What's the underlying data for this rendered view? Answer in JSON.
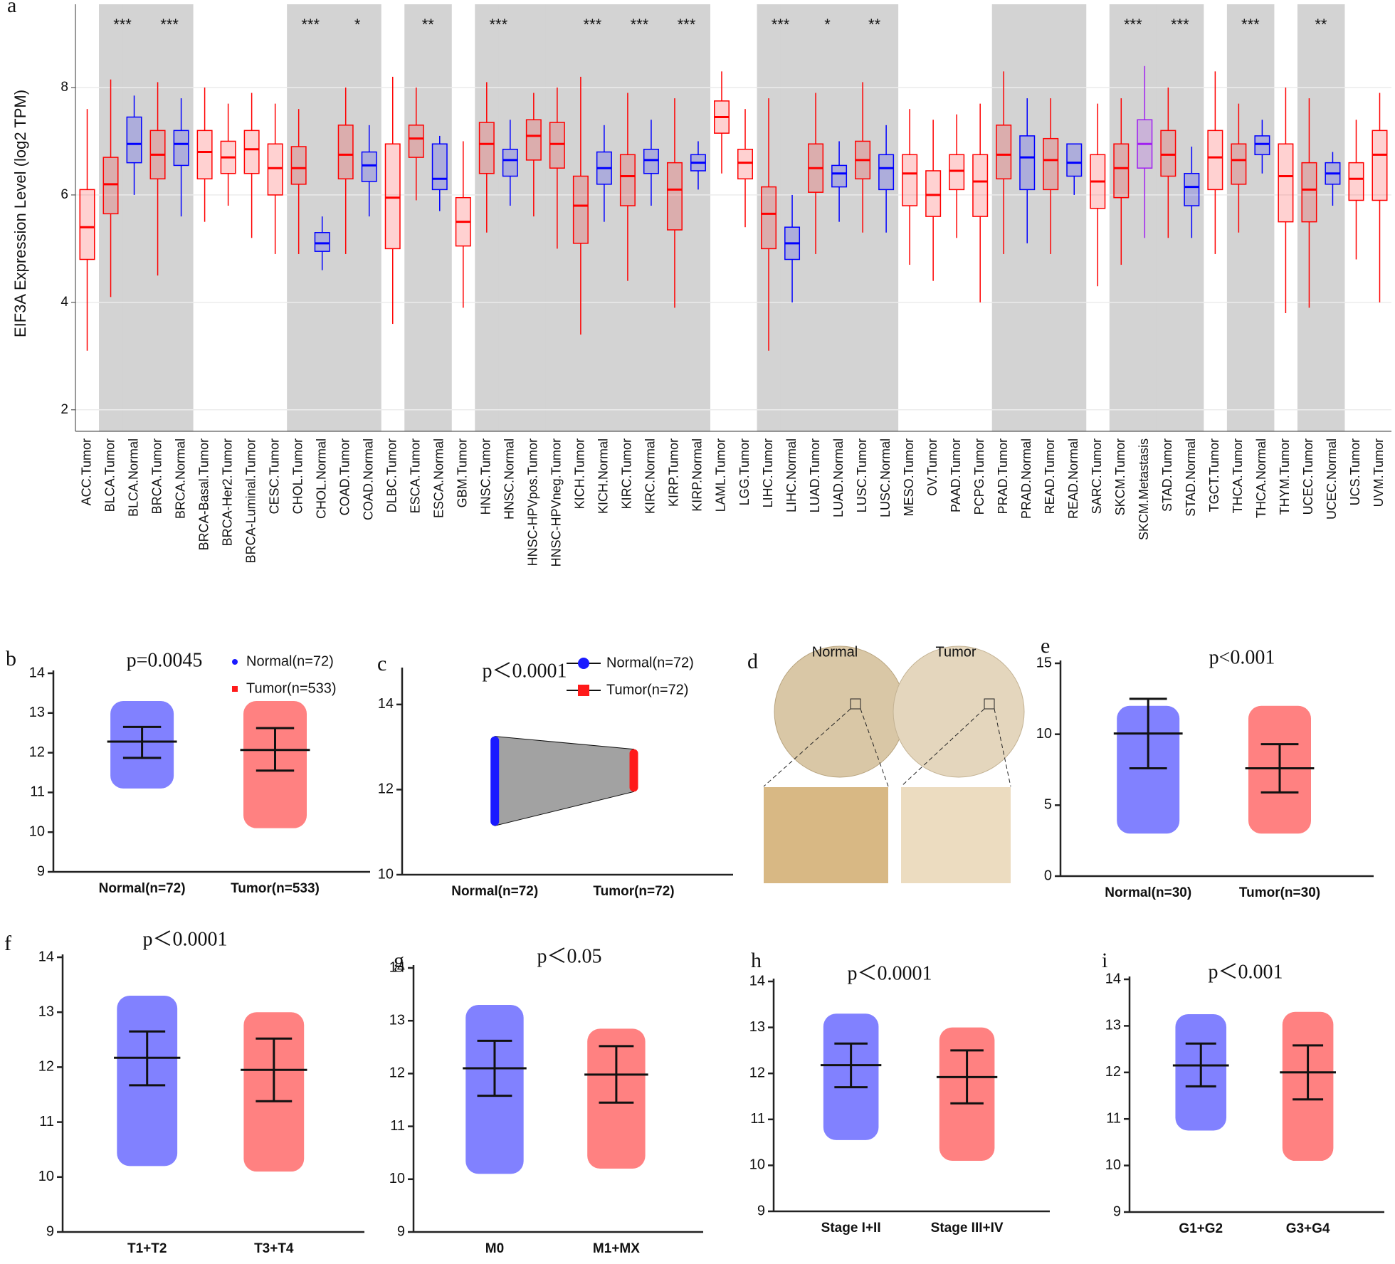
{
  "chart_data": [
    {
      "type": "box",
      "panel_label": "a",
      "ylabel": "EIF3A Expression Level (log2 TPM)",
      "categories": [
        "ACC.Tumor",
        "BLCA.Tumor",
        "BLCA.Normal",
        "BRCA.Tumor",
        "BRCA.Normal",
        "BRCA-Basal.Tumor",
        "BRCA-Her2.Tumor",
        "BRCA-Luminal.Tumor",
        "CESC.Tumor",
        "CHOL.Tumor",
        "CHOL.Normal",
        "COAD.Tumor",
        "COAD.Normal",
        "DLBC.Tumor",
        "ESCA.Tumor",
        "ESCA.Normal",
        "GBM.Tumor",
        "HNSC.Tumor",
        "HNSC.Normal",
        "HNSC-HPVpos.Tumor",
        "HNSC-HPVneg.Tumor",
        "KICH.Tumor",
        "KICH.Normal",
        "KIRC.Tumor",
        "KIRC.Normal",
        "KIRP.Tumor",
        "KIRP.Normal",
        "LAML.Tumor",
        "LGG.Tumor",
        "LIHC.Tumor",
        "LIHC.Normal",
        "LUAD.Tumor",
        "LUAD.Normal",
        "LUSC.Tumor",
        "LUSC.Normal",
        "MESO.Tumor",
        "OV.Tumor",
        "PAAD.Tumor",
        "PCPG.Tumor",
        "PRAD.Tumor",
        "PRAD.Normal",
        "READ.Tumor",
        "READ.Normal",
        "SARC.Tumor",
        "SKCM.Tumor",
        "SKCM.Metastasis",
        "STAD.Tumor",
        "STAD.Normal",
        "TGCT.Tumor",
        "THCA.Tumor",
        "THCA.Normal",
        "THYM.Tumor",
        "UCEC.Tumor",
        "UCEC.Normal",
        "UCS.Tumor",
        "UVM.Tumor"
      ],
      "median": [
        5.4,
        6.2,
        6.95,
        6.75,
        6.95,
        6.8,
        6.7,
        6.85,
        6.5,
        6.5,
        5.1,
        6.75,
        6.55,
        5.95,
        7.05,
        6.3,
        5.5,
        6.95,
        6.65,
        7.1,
        6.95,
        5.8,
        6.5,
        6.35,
        6.65,
        6.1,
        6.6,
        7.45,
        6.6,
        5.65,
        5.1,
        6.5,
        6.4,
        6.65,
        6.5,
        6.4,
        6.0,
        6.45,
        6.25,
        6.75,
        6.7,
        6.65,
        6.6,
        6.25,
        6.5,
        6.95,
        6.75,
        6.15,
        6.7,
        6.65,
        6.95,
        6.35,
        6.1,
        6.4,
        6.3,
        6.75
      ],
      "q1": [
        4.8,
        5.65,
        6.6,
        6.3,
        6.55,
        6.3,
        6.4,
        6.4,
        6.0,
        6.2,
        4.95,
        6.3,
        6.25,
        5.0,
        6.7,
        6.1,
        5.05,
        6.4,
        6.35,
        6.65,
        6.5,
        5.1,
        6.2,
        5.8,
        6.4,
        5.35,
        6.45,
        7.15,
        6.3,
        5.0,
        4.8,
        6.05,
        6.15,
        6.3,
        6.1,
        5.8,
        5.6,
        6.1,
        5.6,
        6.3,
        6.1,
        6.1,
        6.35,
        5.75,
        5.95,
        6.5,
        6.35,
        5.8,
        6.1,
        6.2,
        6.75,
        5.5,
        5.5,
        6.2,
        5.9,
        5.9
      ],
      "q3": [
        6.1,
        6.7,
        7.45,
        7.2,
        7.2,
        7.2,
        7.0,
        7.2,
        6.95,
        6.9,
        5.3,
        7.3,
        6.8,
        6.95,
        7.3,
        6.95,
        5.95,
        7.35,
        6.85,
        7.4,
        7.35,
        6.35,
        6.8,
        6.75,
        6.85,
        6.6,
        6.75,
        7.75,
        6.85,
        6.15,
        5.4,
        6.95,
        6.55,
        7.0,
        6.75,
        6.75,
        6.45,
        6.75,
        6.75,
        7.3,
        7.1,
        7.05,
        6.95,
        6.75,
        6.95,
        7.4,
        7.2,
        6.4,
        7.2,
        6.95,
        7.1,
        6.95,
        6.6,
        6.6,
        6.6,
        7.2
      ],
      "whisker_low": [
        3.1,
        4.1,
        6.0,
        4.5,
        5.6,
        5.5,
        5.8,
        5.2,
        4.9,
        4.9,
        4.6,
        4.9,
        5.6,
        3.6,
        5.9,
        5.7,
        3.9,
        5.3,
        5.8,
        5.6,
        5.0,
        3.4,
        5.5,
        4.4,
        5.8,
        3.9,
        6.1,
        6.4,
        5.4,
        3.1,
        4.0,
        4.9,
        5.5,
        5.3,
        5.3,
        4.7,
        4.4,
        5.2,
        4.0,
        4.9,
        5.1,
        4.9,
        6.0,
        4.3,
        4.7,
        5.2,
        5.2,
        5.2,
        4.9,
        5.3,
        6.4,
        3.8,
        3.9,
        5.8,
        4.8,
        4.0
      ],
      "whisker_high": [
        7.6,
        8.15,
        7.85,
        8.1,
        7.8,
        8.0,
        7.7,
        7.9,
        7.7,
        7.6,
        5.6,
        8.0,
        7.3,
        8.2,
        8.0,
        7.1,
        7.0,
        8.1,
        7.4,
        7.9,
        8.0,
        8.2,
        7.3,
        7.9,
        7.4,
        7.8,
        7.0,
        8.3,
        7.6,
        7.8,
        6.0,
        7.9,
        7.0,
        8.1,
        7.3,
        7.6,
        7.4,
        7.5,
        7.7,
        8.3,
        7.8,
        7.8,
        6.95,
        7.7,
        7.8,
        8.4,
        8.0,
        6.9,
        8.3,
        7.7,
        7.4,
        8.0,
        7.8,
        6.8,
        7.4,
        7.9
      ],
      "colors": [
        "#f00",
        "#f00",
        "#00f",
        "#f00",
        "#00f",
        "#f00",
        "#f00",
        "#f00",
        "#f00",
        "#f00",
        "#00f",
        "#f00",
        "#00f",
        "#f00",
        "#f00",
        "#00f",
        "#f00",
        "#f00",
        "#00f",
        "#f00",
        "#f00",
        "#f00",
        "#00f",
        "#f00",
        "#00f",
        "#f00",
        "#00f",
        "#f00",
        "#f00",
        "#f00",
        "#00f",
        "#f00",
        "#00f",
        "#f00",
        "#00f",
        "#f00",
        "#f00",
        "#f00",
        "#f00",
        "#f00",
        "#00f",
        "#f00",
        "#00f",
        "#f00",
        "#f00",
        "#a020f0",
        "#f00",
        "#00f",
        "#f00",
        "#f00",
        "#00f",
        "#f00",
        "#f00",
        "#00f",
        "#f00",
        "#f00"
      ],
      "shaded": [
        false,
        true,
        true,
        true,
        true,
        false,
        false,
        false,
        false,
        true,
        true,
        true,
        true,
        false,
        true,
        true,
        false,
        true,
        true,
        true,
        true,
        true,
        true,
        true,
        true,
        true,
        true,
        false,
        false,
        true,
        true,
        true,
        true,
        true,
        true,
        false,
        false,
        false,
        false,
        true,
        true,
        true,
        true,
        false,
        true,
        true,
        true,
        true,
        false,
        true,
        true,
        false,
        true,
        true,
        false,
        false
      ],
      "significance": [
        null,
        "***",
        null,
        "***",
        null,
        null,
        null,
        null,
        null,
        "***",
        null,
        "*",
        null,
        null,
        "**",
        null,
        null,
        "***",
        null,
        null,
        null,
        "***",
        null,
        "***",
        null,
        "***",
        null,
        null,
        null,
        "***",
        null,
        "*",
        null,
        "**",
        null,
        null,
        null,
        null,
        null,
        null,
        null,
        null,
        null,
        null,
        "***",
        null,
        "***",
        null,
        null,
        "***",
        null,
        null,
        "**",
        null,
        null,
        null
      ],
      "ylim": [
        1.6,
        9.55
      ],
      "yticks": [
        2,
        4,
        6,
        8
      ],
      "grid": true
    },
    {
      "type": "dot",
      "panel_label": "b",
      "title": "p=0.0045",
      "categories": [
        "Normal(n=72)",
        "Tumor(n=533)"
      ],
      "colors": [
        "#1a1aff",
        "#ff1a1a"
      ],
      "markers": [
        "circle",
        "square"
      ],
      "legend": true,
      "mean": [
        12.28,
        12.07
      ],
      "sd_low": [
        11.87,
        11.55
      ],
      "sd_high": [
        12.65,
        12.62
      ],
      "min": [
        11.1,
        10.1
      ],
      "max": [
        13.3,
        13.3
      ],
      "ylim": [
        9,
        14
      ],
      "yticks": [
        9,
        10,
        11,
        12,
        13,
        14
      ]
    },
    {
      "type": "paired",
      "panel_label": "c",
      "title": "p＜0.0001",
      "categories": [
        "Normal(n=72)",
        "Tumor(n=72)"
      ],
      "colors": [
        "#1a1aff",
        "#ff1a1a"
      ],
      "markers": [
        "circle",
        "square"
      ],
      "legend": true,
      "min": [
        11.15,
        11.95
      ],
      "max": [
        13.25,
        12.95
      ],
      "ylim": [
        10,
        14.8
      ],
      "yticks": [
        10,
        12,
        14
      ]
    },
    {
      "type": "image",
      "panel_label": "d",
      "labels": [
        "Normal",
        "Tumor"
      ]
    },
    {
      "type": "dot",
      "panel_label": "e",
      "title": "p<0.001",
      "categories": [
        "Normal(n=30)",
        "Tumor(n=30)"
      ],
      "colors": [
        "#1a1aff",
        "#ff1a1a"
      ],
      "mean": [
        10.05,
        7.6
      ],
      "sd_low": [
        7.6,
        5.9
      ],
      "sd_high": [
        12.5,
        9.3
      ],
      "min": [
        3,
        3
      ],
      "max": [
        12,
        12
      ],
      "ylim": [
        0,
        15
      ],
      "yticks": [
        0,
        5,
        10,
        15
      ]
    },
    {
      "type": "dot",
      "panel_label": "f",
      "title": "p＜0.0001",
      "categories": [
        "T1+T2",
        "T3+T4"
      ],
      "colors": [
        "#1a1aff",
        "#ff1a1a"
      ],
      "mean": [
        12.17,
        11.95
      ],
      "sd_low": [
        11.67,
        11.38
      ],
      "sd_high": [
        12.65,
        12.52
      ],
      "min": [
        10.2,
        10.1
      ],
      "max": [
        13.3,
        13.0
      ],
      "ylim": [
        9,
        14
      ],
      "yticks": [
        9,
        10,
        11,
        12,
        13,
        14
      ]
    },
    {
      "type": "dot",
      "panel_label": "g",
      "title": "p＜0.05",
      "categories": [
        "M0",
        "M1+MX"
      ],
      "colors": [
        "#1a1aff",
        "#ff1a1a"
      ],
      "mean": [
        12.1,
        11.98
      ],
      "sd_low": [
        11.58,
        11.45
      ],
      "sd_high": [
        12.62,
        12.52
      ],
      "min": [
        10.1,
        10.2
      ],
      "max": [
        13.3,
        12.85
      ],
      "ylim": [
        9,
        14
      ],
      "yticks": [
        9,
        10,
        11,
        12,
        13,
        14
      ]
    },
    {
      "type": "dot",
      "panel_label": "h",
      "title": "p＜0.0001",
      "categories": [
        "Stage I+II",
        "Stage III+IV"
      ],
      "colors": [
        "#1a1aff",
        "#ff1a1a"
      ],
      "mean": [
        12.18,
        11.92
      ],
      "sd_low": [
        11.7,
        11.35
      ],
      "sd_high": [
        12.65,
        12.5
      ],
      "min": [
        10.55,
        10.1
      ],
      "max": [
        13.3,
        13.0
      ],
      "ylim": [
        9,
        14
      ],
      "yticks": [
        9,
        10,
        11,
        12,
        13,
        14
      ]
    },
    {
      "type": "dot",
      "panel_label": "i",
      "title": "p＜0.001",
      "categories": [
        "G1+G2",
        "G3+G4"
      ],
      "colors": [
        "#1a1aff",
        "#ff1a1a"
      ],
      "mean": [
        12.15,
        12.0
      ],
      "sd_low": [
        11.7,
        11.42
      ],
      "sd_high": [
        12.62,
        12.58
      ],
      "min": [
        10.75,
        10.1
      ],
      "max": [
        13.25,
        13.3
      ],
      "ylim": [
        9,
        14
      ],
      "yticks": [
        9,
        10,
        11,
        12,
        13,
        14
      ]
    }
  ]
}
